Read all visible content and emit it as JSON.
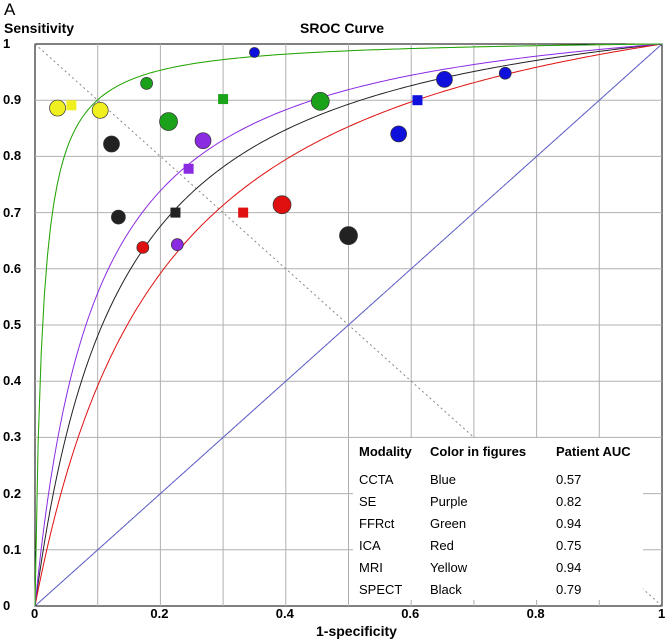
{
  "chart_data": {
    "type": "scatter",
    "panel_label": "A",
    "title": "SROC Curve",
    "xlabel": "1-specificity",
    "ylabel": "Sensitivity",
    "xlim": [
      0,
      1
    ],
    "ylim": [
      0,
      1
    ],
    "x_ticks": [
      "0",
      "0.2",
      "0.4",
      "0.6",
      "0.8",
      "1"
    ],
    "y_ticks": [
      "0",
      "0.1",
      "0.2",
      "0.3",
      "0.4",
      "0.5",
      "0.6",
      "0.7",
      "0.8",
      "0.9",
      "1"
    ],
    "grid": true,
    "colors": {
      "CCTA": "#1010dd",
      "SE": "#8a2be2",
      "FFRct": "#1aa31a",
      "ICA": "#e01010",
      "MRI": "#f0f020",
      "SPECT": "#222222",
      "reference_line": "#6060cc"
    },
    "curves": [
      {
        "modality": "CCTA",
        "auc": 0.57
      },
      {
        "modality": "SE",
        "auc": 0.82
      },
      {
        "modality": "FFRct",
        "auc": 0.94
      },
      {
        "modality": "ICA",
        "auc": 0.75
      },
      {
        "modality": "MRI",
        "auc": 0.94
      },
      {
        "modality": "SPECT",
        "auc": 0.79
      }
    ],
    "points": [
      {
        "modality": "CCTA",
        "shape": "circle",
        "x": 0.35,
        "y": 0.985,
        "r": 5
      },
      {
        "modality": "CCTA",
        "shape": "circle",
        "x": 0.653,
        "y": 0.937,
        "r": 8
      },
      {
        "modality": "CCTA",
        "shape": "circle",
        "x": 0.75,
        "y": 0.948,
        "r": 6
      },
      {
        "modality": "CCTA",
        "shape": "circle",
        "x": 0.58,
        "y": 0.84,
        "r": 8
      },
      {
        "modality": "CCTA",
        "shape": "square",
        "x": 0.61,
        "y": 0.9
      },
      {
        "modality": "SE",
        "shape": "circle",
        "x": 0.268,
        "y": 0.828,
        "r": 8
      },
      {
        "modality": "SE",
        "shape": "circle",
        "x": 0.227,
        "y": 0.643,
        "r": 6
      },
      {
        "modality": "SE",
        "shape": "square",
        "x": 0.245,
        "y": 0.778
      },
      {
        "modality": "FFRct",
        "shape": "circle",
        "x": 0.178,
        "y": 0.93,
        "r": 6
      },
      {
        "modality": "FFRct",
        "shape": "circle",
        "x": 0.213,
        "y": 0.862,
        "r": 9
      },
      {
        "modality": "FFRct",
        "shape": "circle",
        "x": 0.455,
        "y": 0.898,
        "r": 9
      },
      {
        "modality": "FFRct",
        "shape": "square",
        "x": 0.3,
        "y": 0.902
      },
      {
        "modality": "ICA",
        "shape": "circle",
        "x": 0.172,
        "y": 0.638,
        "r": 6
      },
      {
        "modality": "ICA",
        "shape": "circle",
        "x": 0.394,
        "y": 0.714,
        "r": 9
      },
      {
        "modality": "ICA",
        "shape": "square",
        "x": 0.332,
        "y": 0.7
      },
      {
        "modality": "MRI",
        "shape": "circle",
        "x": 0.036,
        "y": 0.886,
        "r": 8
      },
      {
        "modality": "MRI",
        "shape": "circle",
        "x": 0.104,
        "y": 0.882,
        "r": 8
      },
      {
        "modality": "MRI",
        "shape": "square",
        "x": 0.058,
        "y": 0.891
      },
      {
        "modality": "SPECT",
        "shape": "circle",
        "x": 0.122,
        "y": 0.822,
        "r": 8
      },
      {
        "modality": "SPECT",
        "shape": "circle",
        "x": 0.133,
        "y": 0.692,
        "r": 7
      },
      {
        "modality": "SPECT",
        "shape": "circle",
        "x": 0.5,
        "y": 0.659,
        "r": 9
      },
      {
        "modality": "SPECT",
        "shape": "square",
        "x": 0.224,
        "y": 0.7
      }
    ],
    "legend": {
      "headers": [
        "Modality",
        "Color in figures",
        "Patient AUC"
      ],
      "rows": [
        [
          "CCTA",
          "Blue",
          "0.57"
        ],
        [
          "SE",
          "Purple",
          "0.82"
        ],
        [
          "FFRct",
          "Green",
          "0.94"
        ],
        [
          "ICA",
          "Red",
          "0.75"
        ],
        [
          "MRI",
          "Yellow",
          "0.94"
        ],
        [
          "SPECT",
          "Black",
          "0.79"
        ]
      ],
      "placement": "bottom-right"
    }
  }
}
